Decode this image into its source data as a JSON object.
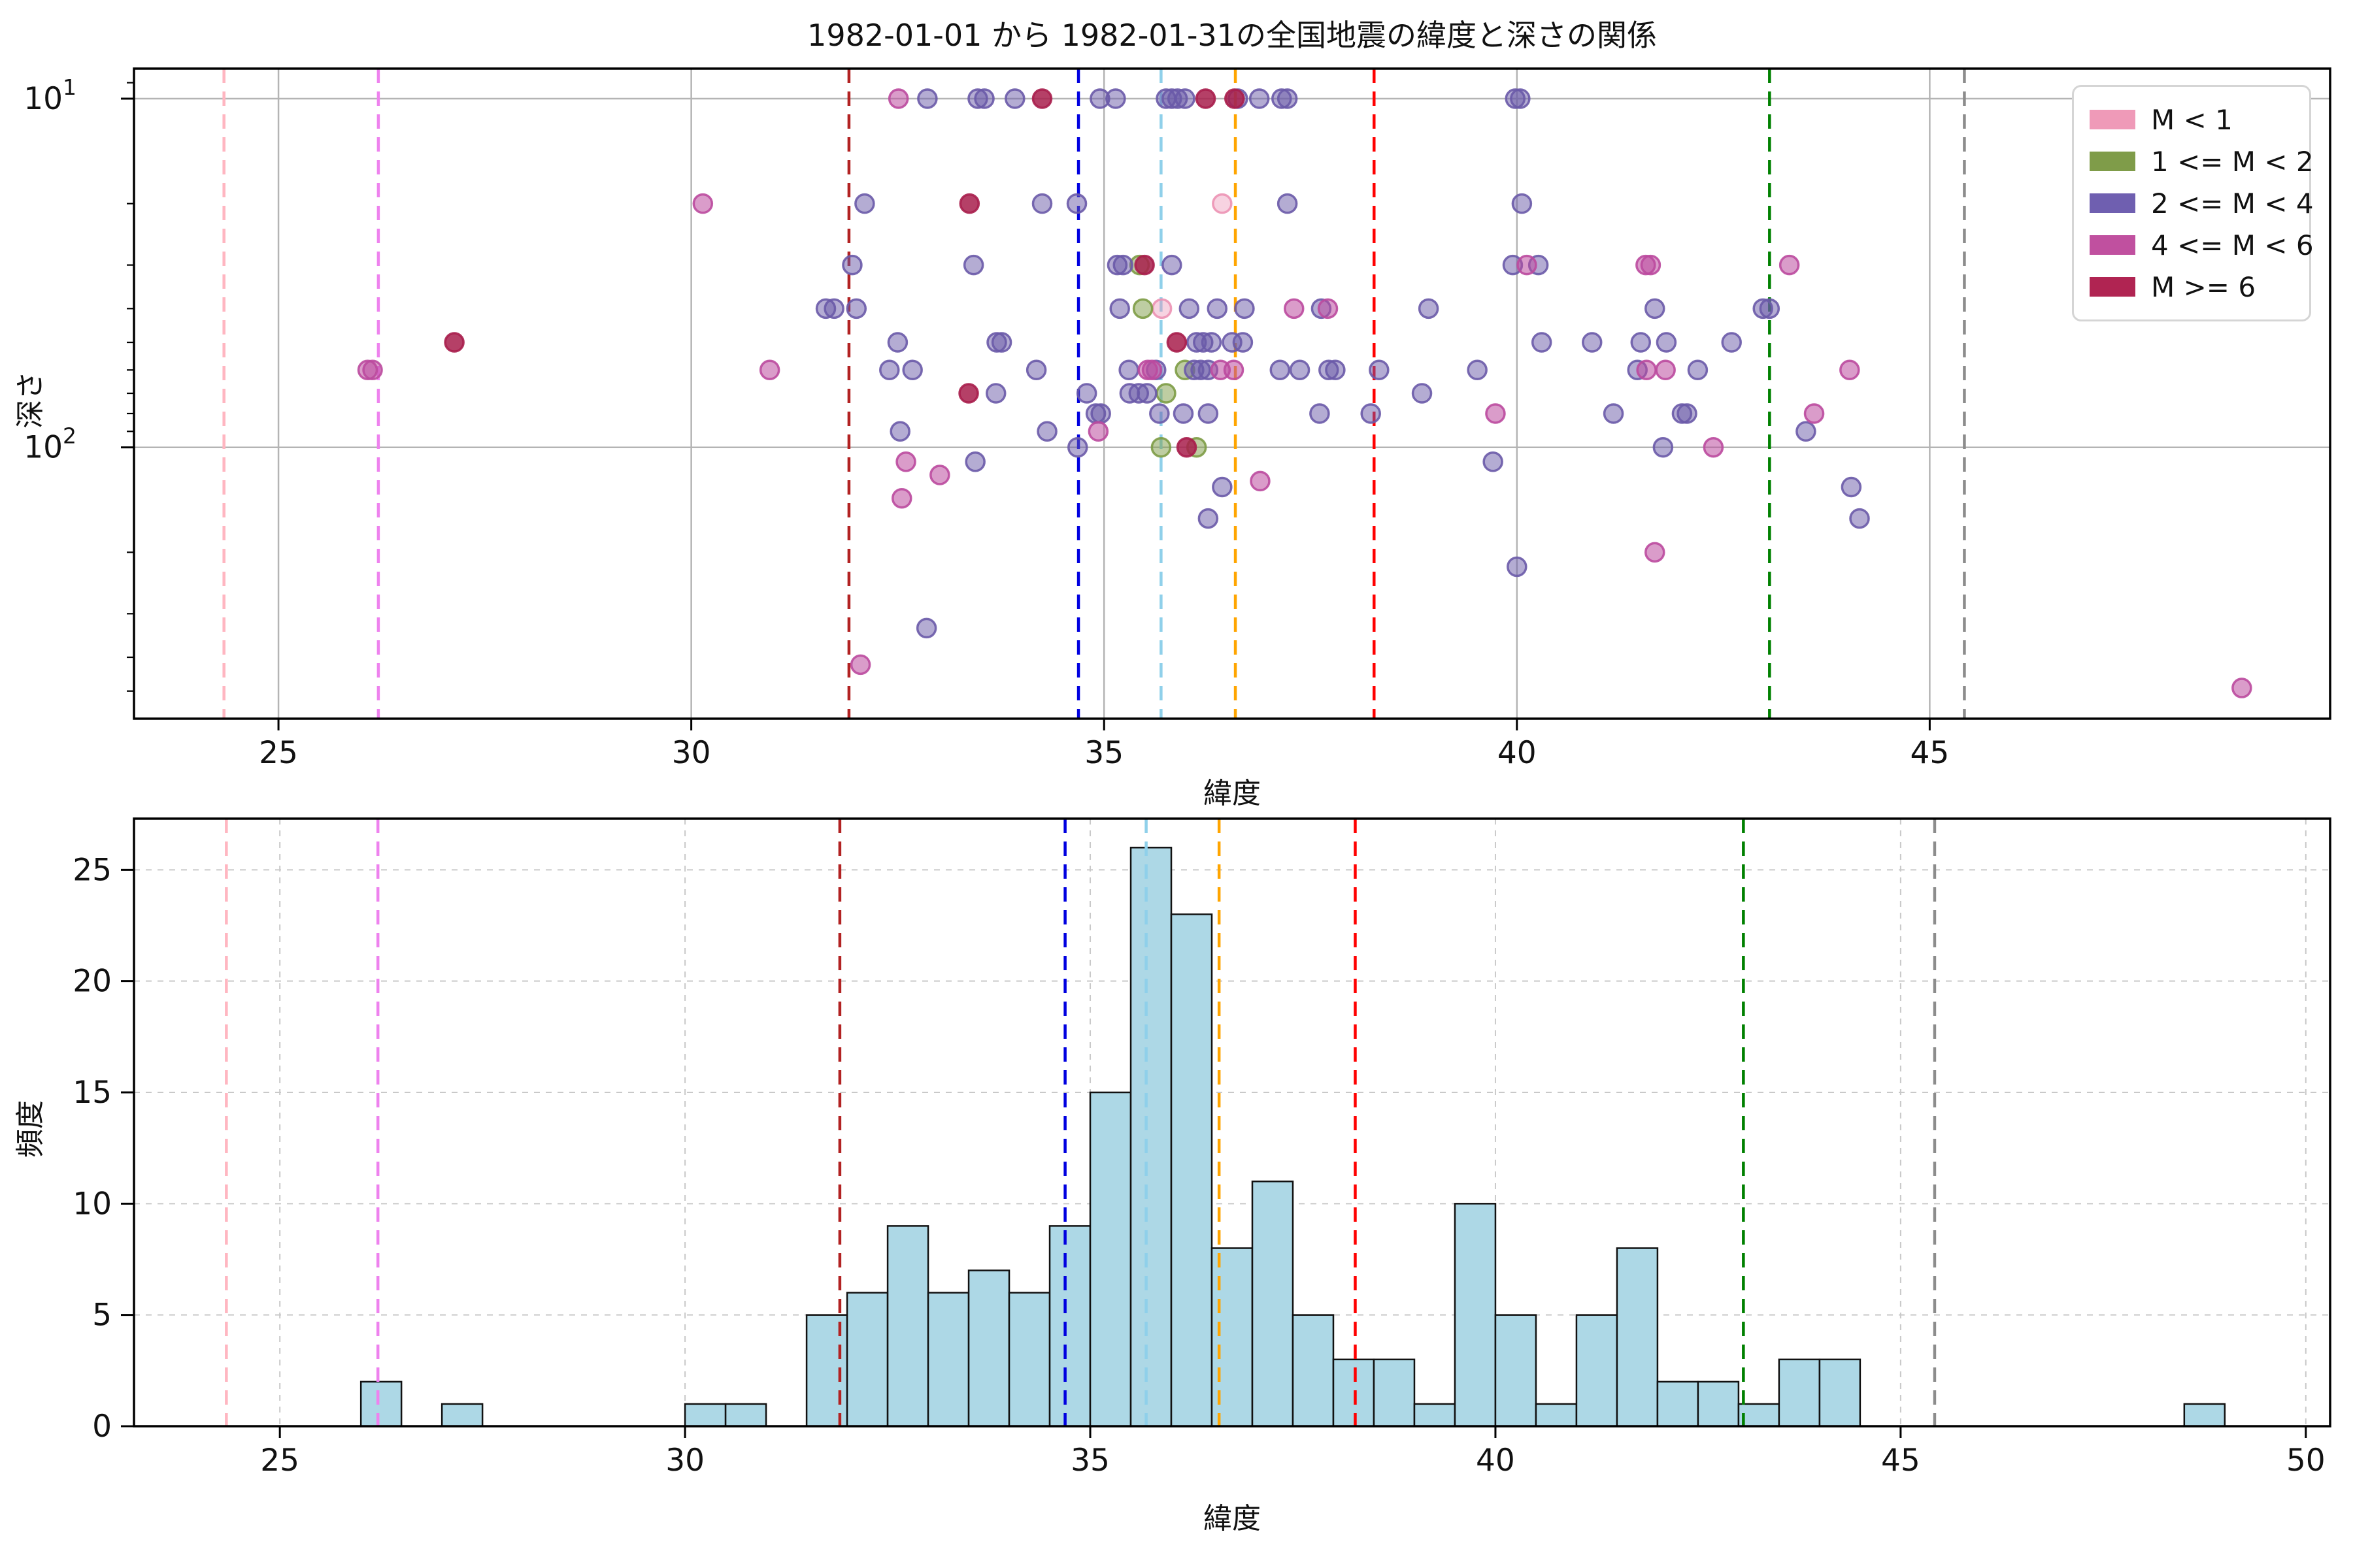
{
  "figure": {
    "title": "1982-01-01 から 1982-01-31の全国地震の緯度と深さの関係",
    "background": "#ffffff"
  },
  "legend": {
    "items": [
      {
        "label": "M < 1",
        "color": "#ef9ab8"
      },
      {
        "label": "1 <= M < 2",
        "color": "#7f9c49"
      },
      {
        "label": "2 <= M < 4",
        "color": "#6f5fb0"
      },
      {
        "label": "4 <= M < 6",
        "color": "#c0509f"
      },
      {
        "label": "M >= 6",
        "color": "#b02452"
      }
    ]
  },
  "reference_lines": [
    {
      "lat": 24.34,
      "color": "#ffb6c1"
    },
    {
      "lat": 26.21,
      "color": "#ee82ee"
    },
    {
      "lat": 31.91,
      "color": "#b22222"
    },
    {
      "lat": 34.69,
      "color": "#0000e0"
    },
    {
      "lat": 35.69,
      "color": "#8fd0ea"
    },
    {
      "lat": 36.59,
      "color": "#ffa500"
    },
    {
      "lat": 38.27,
      "color": "#ff0000"
    },
    {
      "lat": 43.06,
      "color": "#008000"
    },
    {
      "lat": 45.42,
      "color": "#8c8c8c"
    }
  ],
  "chart_data": [
    {
      "type": "scatter",
      "panel": "top",
      "xlabel": "緯度",
      "ylabel": "深さ",
      "xlim": [
        23.25,
        49.85
      ],
      "ylim": [
        8.2,
        600
      ],
      "yscale": "log",
      "y_inverted": true,
      "grid": true,
      "xticks": [
        25,
        30,
        35,
        40,
        45
      ],
      "yticks": [
        10,
        100
      ],
      "ytick_labels": [
        "10¹",
        "10²"
      ],
      "series": [
        {
          "name": "M < 1",
          "color": "#ec92b4",
          "fill_alpha": 0.4,
          "points": [
            [
              36.43,
              20
            ],
            [
              35.7,
              40
            ]
          ]
        },
        {
          "name": "1 <= M < 2",
          "color": "#7d9c45",
          "fill_alpha": 0.5,
          "points": [
            [
              35.43,
              30
            ],
            [
              35.47,
              40
            ],
            [
              35.98,
              60
            ],
            [
              35.75,
              70
            ],
            [
              35.69,
              100
            ],
            [
              36.12,
              100
            ]
          ]
        },
        {
          "name": "2 <= M < 4",
          "color": "#6a5aa8",
          "fill_alpha": 0.5,
          "points": [
            [
              32.86,
              10
            ],
            [
              33.47,
              10
            ],
            [
              33.55,
              10
            ],
            [
              33.92,
              10
            ],
            [
              34.95,
              10
            ],
            [
              35.14,
              10
            ],
            [
              35.75,
              10
            ],
            [
              35.82,
              10
            ],
            [
              35.89,
              10
            ],
            [
              35.98,
              10
            ],
            [
              36.62,
              10
            ],
            [
              36.88,
              10
            ],
            [
              37.15,
              10
            ],
            [
              37.22,
              10
            ],
            [
              39.98,
              10
            ],
            [
              40.04,
              10
            ],
            [
              32.1,
              20
            ],
            [
              34.25,
              20
            ],
            [
              34.67,
              20
            ],
            [
              37.22,
              20
            ],
            [
              40.06,
              20
            ],
            [
              31.95,
              30
            ],
            [
              33.42,
              30
            ],
            [
              35.16,
              30
            ],
            [
              35.23,
              30
            ],
            [
              35.82,
              30
            ],
            [
              39.95,
              30
            ],
            [
              40.26,
              30
            ],
            [
              31.63,
              40
            ],
            [
              31.73,
              40
            ],
            [
              32.0,
              40
            ],
            [
              35.19,
              40
            ],
            [
              36.03,
              40
            ],
            [
              36.37,
              40
            ],
            [
              36.7,
              40
            ],
            [
              37.63,
              40
            ],
            [
              38.93,
              40
            ],
            [
              41.67,
              40
            ],
            [
              42.98,
              40
            ],
            [
              43.06,
              40
            ],
            [
              32.5,
              50
            ],
            [
              33.7,
              50
            ],
            [
              33.76,
              50
            ],
            [
              36.12,
              50
            ],
            [
              36.2,
              50
            ],
            [
              36.3,
              50
            ],
            [
              36.55,
              50
            ],
            [
              36.68,
              50
            ],
            [
              40.3,
              50
            ],
            [
              40.91,
              50
            ],
            [
              41.5,
              50
            ],
            [
              41.81,
              50
            ],
            [
              42.6,
              50
            ],
            [
              32.4,
              60
            ],
            [
              32.68,
              60
            ],
            [
              34.18,
              60
            ],
            [
              35.3,
              60
            ],
            [
              35.63,
              60
            ],
            [
              36.09,
              60
            ],
            [
              36.17,
              60
            ],
            [
              36.26,
              60
            ],
            [
              37.13,
              60
            ],
            [
              37.37,
              60
            ],
            [
              37.72,
              60
            ],
            [
              37.8,
              60
            ],
            [
              38.33,
              60
            ],
            [
              39.52,
              60
            ],
            [
              41.46,
              60
            ],
            [
              42.19,
              60
            ],
            [
              33.69,
              70
            ],
            [
              34.79,
              70
            ],
            [
              35.31,
              70
            ],
            [
              35.42,
              70
            ],
            [
              35.52,
              70
            ],
            [
              38.85,
              70
            ],
            [
              34.9,
              80
            ],
            [
              34.96,
              80
            ],
            [
              35.67,
              80
            ],
            [
              35.96,
              80
            ],
            [
              36.26,
              80
            ],
            [
              37.61,
              80
            ],
            [
              38.23,
              80
            ],
            [
              41.17,
              80
            ],
            [
              42.0,
              80
            ],
            [
              42.06,
              80
            ],
            [
              32.53,
              90
            ],
            [
              34.31,
              90
            ],
            [
              43.5,
              90
            ],
            [
              34.68,
              100
            ],
            [
              41.77,
              100
            ],
            [
              33.44,
              110
            ],
            [
              39.71,
              110
            ],
            [
              36.43,
              130
            ],
            [
              44.05,
              130
            ],
            [
              36.26,
              160
            ],
            [
              44.15,
              160
            ],
            [
              40.0,
              220
            ],
            [
              32.85,
              330
            ]
          ]
        },
        {
          "name": "4 <= M < 6",
          "color": "#bb4a9e",
          "fill_alpha": 0.55,
          "points": [
            [
              26.08,
              60
            ],
            [
              26.14,
              60
            ],
            [
              30.14,
              20
            ],
            [
              30.95,
              60
            ],
            [
              32.51,
              10
            ],
            [
              40.12,
              30
            ],
            [
              41.56,
              30
            ],
            [
              41.62,
              30
            ],
            [
              43.3,
              30
            ],
            [
              37.3,
              40
            ],
            [
              37.71,
              40
            ],
            [
              35.53,
              60
            ],
            [
              35.58,
              60
            ],
            [
              36.41,
              60
            ],
            [
              36.57,
              60
            ],
            [
              41.57,
              60
            ],
            [
              41.8,
              60
            ],
            [
              44.03,
              60
            ],
            [
              39.74,
              80
            ],
            [
              43.6,
              80
            ],
            [
              34.93,
              90
            ],
            [
              42.38,
              100
            ],
            [
              32.6,
              110
            ],
            [
              33.01,
              120
            ],
            [
              36.89,
              125
            ],
            [
              32.55,
              140
            ],
            [
              41.67,
              200
            ],
            [
              32.05,
              420
            ],
            [
              48.78,
              490
            ]
          ]
        },
        {
          "name": "M >= 6",
          "color": "#a81e4c",
          "fill_alpha": 0.85,
          "points": [
            [
              34.25,
              10
            ],
            [
              36.23,
              10
            ],
            [
              36.58,
              10
            ],
            [
              33.37,
              20
            ],
            [
              35.49,
              30
            ],
            [
              27.13,
              50
            ],
            [
              35.88,
              50
            ],
            [
              33.36,
              70
            ],
            [
              36.0,
              100
            ]
          ]
        }
      ]
    },
    {
      "type": "bar",
      "panel": "bottom",
      "xlabel": "緯度",
      "ylabel": "頻度",
      "xlim": [
        23.2,
        50.3
      ],
      "ylim": [
        0,
        27.3
      ],
      "grid": true,
      "xticks": [
        25,
        30,
        35,
        40,
        45,
        50
      ],
      "yticks": [
        0,
        5,
        10,
        15,
        20,
        25
      ],
      "bin_start": 26.0,
      "bin_width": 0.5,
      "counts": [
        2,
        0,
        1,
        0,
        0,
        0,
        0,
        0,
        1,
        1,
        0,
        5,
        6,
        9,
        6,
        7,
        6,
        9,
        15,
        26,
        23,
        8,
        11,
        5,
        3,
        3,
        1,
        10,
        5,
        1,
        5,
        8,
        2,
        2,
        1,
        3,
        3,
        0,
        0,
        0,
        0,
        0,
        0,
        0,
        0,
        1
      ],
      "bar_color": "#add8e6",
      "bar_edge": "#111111"
    }
  ]
}
